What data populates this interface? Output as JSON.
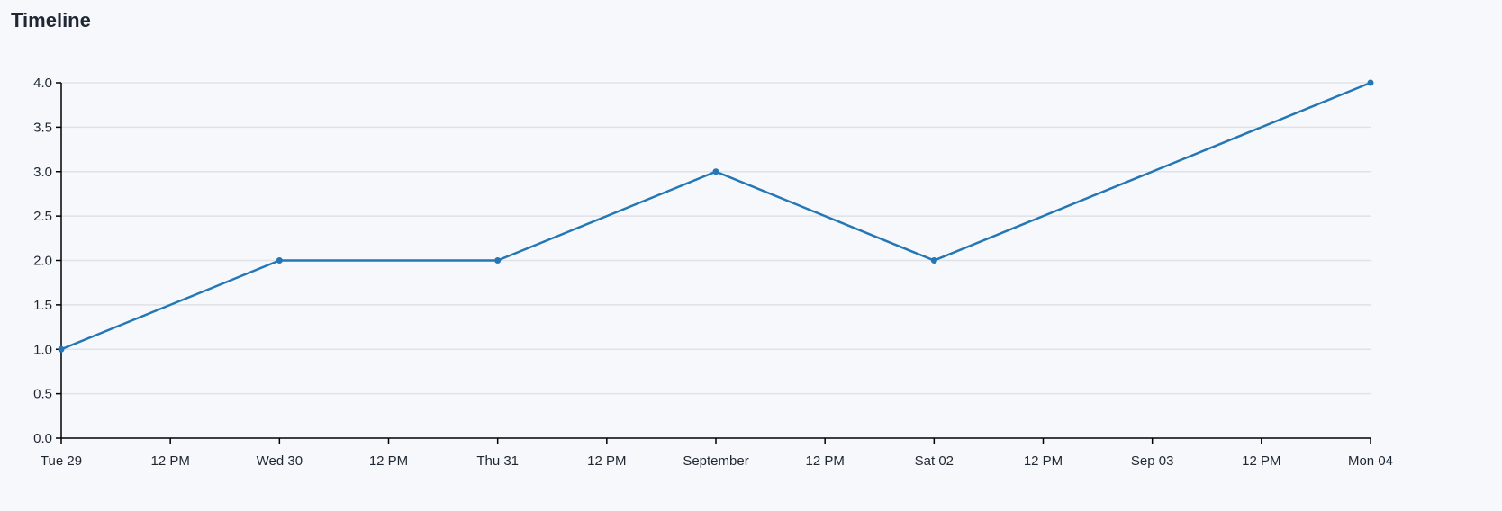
{
  "chart_data": {
    "type": "line",
    "title": "Timeline",
    "xlabel": "",
    "ylabel": "",
    "x": [
      "2023-08-29",
      "2023-08-30",
      "2023-08-31",
      "2023-09-01",
      "2023-09-02",
      "2023-09-04"
    ],
    "series": [
      {
        "values": [
          1,
          2,
          2,
          3,
          2,
          4
        ]
      }
    ],
    "ylim": [
      0,
      4
    ],
    "yticks": [
      "0.0",
      "0.5",
      "1.0",
      "1.5",
      "2.0",
      "2.5",
      "3.0",
      "3.5",
      "4.0"
    ],
    "xlim": [
      "2023-08-29",
      "2023-09-04"
    ],
    "xticks": [
      "Tue 29",
      "12 PM",
      "Wed 30",
      "12 PM",
      "Thu 31",
      "12 PM",
      "September",
      "12 PM",
      "Sat 02",
      "12 PM",
      "Sep 03",
      "12 PM",
      "Mon 04"
    ],
    "grid": true,
    "line_color": "#2477b5",
    "grid_color": "#dfe2e7"
  }
}
